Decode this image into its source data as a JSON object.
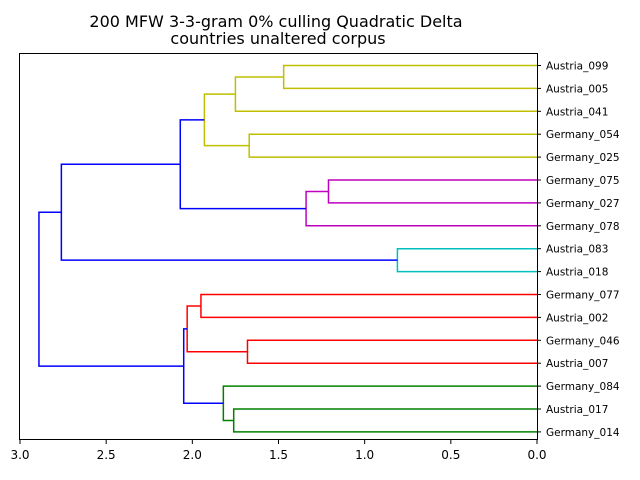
{
  "chart_data": {
    "type": "dendrogram",
    "title_line1": "200 MFW 3-3-gram 0% culling Quadratic Delta",
    "title_line2": "countries unaltered corpus",
    "xlabel": "",
    "ylabel": "",
    "xlim": [
      3.0,
      0.0
    ],
    "xticks": [
      3.0,
      2.5,
      2.0,
      1.5,
      1.0,
      0.5,
      0.0
    ],
    "xtick_labels": [
      "3.0",
      "2.5",
      "2.0",
      "1.5",
      "1.0",
      "0.5",
      "0.0"
    ],
    "grid": false,
    "leaves": [
      "Austria_099",
      "Austria_005",
      "Austria_041",
      "Germany_054",
      "Germany_025",
      "Germany_075",
      "Germany_027",
      "Germany_078",
      "Austria_083",
      "Austria_018",
      "Germany_077",
      "Austria_002",
      "Germany_046",
      "Austria_007",
      "Germany_084",
      "Austria_017",
      "Germany_014"
    ],
    "colors": {
      "yellow": "#bfbf00",
      "magenta": "#bf00bf",
      "cyan": "#00bfbf",
      "red": "#ff0000",
      "green": "#008000",
      "blue": "#0000ff"
    },
    "merges": [
      {
        "a": "L0",
        "b": "L1",
        "height": 1.47,
        "color": "yellow"
      },
      {
        "a": "M0",
        "b": "L2",
        "height": 1.75,
        "color": "yellow"
      },
      {
        "a": "L3",
        "b": "L4",
        "height": 1.67,
        "color": "yellow"
      },
      {
        "a": "M1",
        "b": "M2",
        "height": 1.93,
        "color": "yellow"
      },
      {
        "a": "L5",
        "b": "L6",
        "height": 1.21,
        "color": "magenta"
      },
      {
        "a": "M4",
        "b": "L7",
        "height": 1.34,
        "color": "magenta"
      },
      {
        "a": "M3",
        "b": "M5",
        "height": 2.07,
        "color": "blue"
      },
      {
        "a": "L8",
        "b": "L9",
        "height": 0.81,
        "color": "cyan"
      },
      {
        "a": "M6",
        "b": "M7",
        "height": 2.76,
        "color": "blue"
      },
      {
        "a": "L10",
        "b": "L11",
        "height": 1.95,
        "color": "red"
      },
      {
        "a": "L12",
        "b": "L13",
        "height": 1.68,
        "color": "red"
      },
      {
        "a": "M9",
        "b": "M10",
        "height": 2.03,
        "color": "red"
      },
      {
        "a": "L15",
        "b": "L16",
        "height": 1.76,
        "color": "green"
      },
      {
        "a": "L14",
        "b": "M12",
        "height": 1.82,
        "color": "green"
      },
      {
        "a": "M11",
        "b": "M13",
        "height": 2.05,
        "color": "blue"
      },
      {
        "a": "M8",
        "b": "M14",
        "height": 2.89,
        "color": "blue"
      }
    ]
  }
}
